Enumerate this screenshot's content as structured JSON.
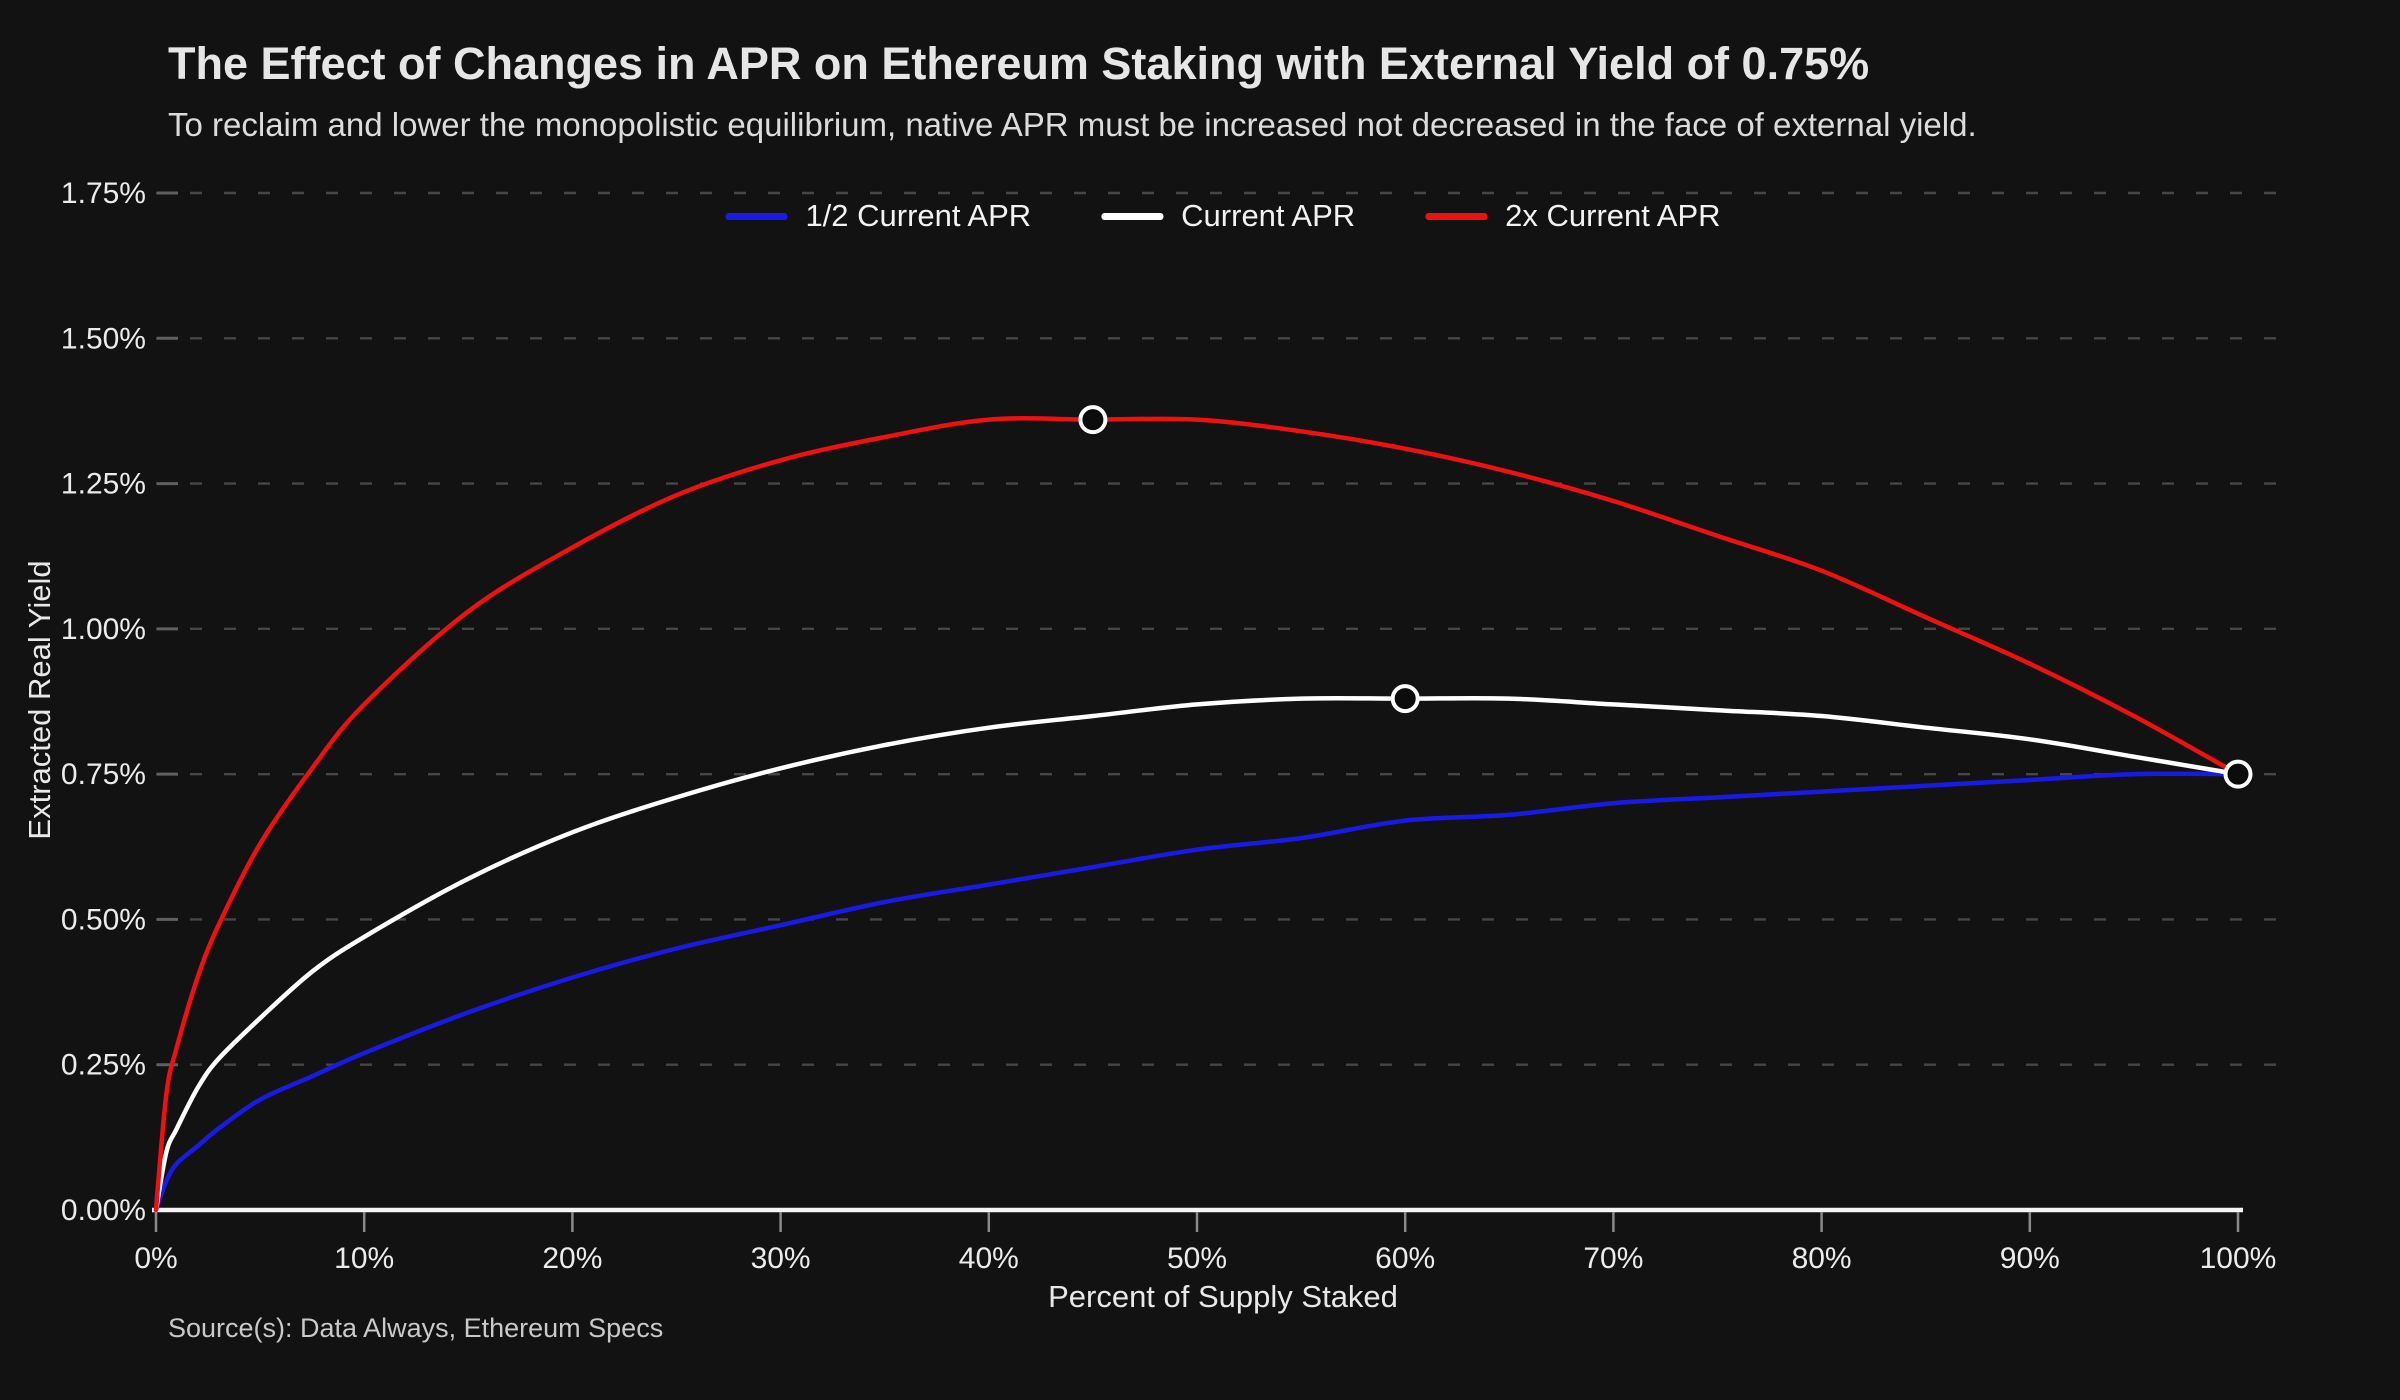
{
  "title": "The Effect of Changes in APR on Ethereum Staking with External Yield of 0.75%",
  "subtitle": "To reclaim and lower the monopolistic equilibrium, native APR must be increased not decreased in the face of external yield.",
  "source": "Source(s): Data Always, Ethereum Specs",
  "colors": {
    "background": "#121212",
    "grid": "#464646",
    "axis_line": "#f5f5f5",
    "tick": "#8a8a8a",
    "y_tick": "#5f5f5f",
    "marker_fill": "#0c0c0c",
    "marker_ring": "#ffffff"
  },
  "chart_data": {
    "type": "line",
    "title": "The Effect of Changes in APR on Ethereum Staking with External Yield of 0.75%",
    "subtitle": "To reclaim and lower the monopolistic equilibrium, native APR must be increased not decreased in the face of external yield.",
    "xlabel": "Percent of Supply Staked",
    "ylabel": "Extracted Real Yield",
    "xlim": [
      0,
      100
    ],
    "ylim": [
      0,
      1.75
    ],
    "grid": "horizontal-dashed",
    "legend_position": "top-center",
    "x_tick_values": [
      0,
      10,
      20,
      30,
      40,
      50,
      60,
      70,
      80,
      90,
      100
    ],
    "x_ticks": [
      "0%",
      "10%",
      "20%",
      "30%",
      "40%",
      "50%",
      "60%",
      "70%",
      "80%",
      "90%",
      "100%"
    ],
    "y_tick_values": [
      0,
      0.25,
      0.5,
      0.75,
      1.0,
      1.25,
      1.5,
      1.75
    ],
    "y_ticks": [
      "0.00%",
      "0.25%",
      "0.50%",
      "0.75%",
      "1.00%",
      "1.25%",
      "1.50%",
      "1.75%"
    ],
    "x": [
      0,
      0.5,
      1,
      2,
      3,
      5,
      7.5,
      10,
      15,
      20,
      25,
      30,
      35,
      40,
      45,
      50,
      55,
      60,
      65,
      70,
      75,
      80,
      85,
      90,
      95,
      100
    ],
    "series": [
      {
        "name": "1/2 Current APR",
        "color": "#1a1ae6",
        "values": [
          0,
          0.05,
          0.08,
          0.11,
          0.14,
          0.19,
          0.23,
          0.27,
          0.34,
          0.4,
          0.45,
          0.49,
          0.53,
          0.56,
          0.59,
          0.62,
          0.64,
          0.67,
          0.68,
          0.7,
          0.71,
          0.72,
          0.73,
          0.74,
          0.75,
          0.75
        ]
      },
      {
        "name": "Current APR",
        "color": "#ffffff",
        "values": [
          0,
          0.1,
          0.14,
          0.21,
          0.26,
          0.33,
          0.41,
          0.47,
          0.57,
          0.65,
          0.71,
          0.76,
          0.8,
          0.83,
          0.85,
          0.87,
          0.88,
          0.88,
          0.88,
          0.87,
          0.86,
          0.85,
          0.83,
          0.81,
          0.78,
          0.75
        ]
      },
      {
        "name": "2x Current APR",
        "color": "#ee1111",
        "values": [
          0,
          0.2,
          0.28,
          0.4,
          0.49,
          0.63,
          0.76,
          0.87,
          1.03,
          1.14,
          1.23,
          1.29,
          1.33,
          1.36,
          1.36,
          1.36,
          1.34,
          1.31,
          1.27,
          1.22,
          1.16,
          1.1,
          1.02,
          0.94,
          0.85,
          0.75
        ]
      }
    ],
    "markers": [
      {
        "x": 45,
        "y": 1.36,
        "series": "2x Current APR"
      },
      {
        "x": 60,
        "y": 0.88,
        "series": "Current APR"
      },
      {
        "x": 100,
        "y": 0.75,
        "series": "all curves converge"
      }
    ]
  }
}
